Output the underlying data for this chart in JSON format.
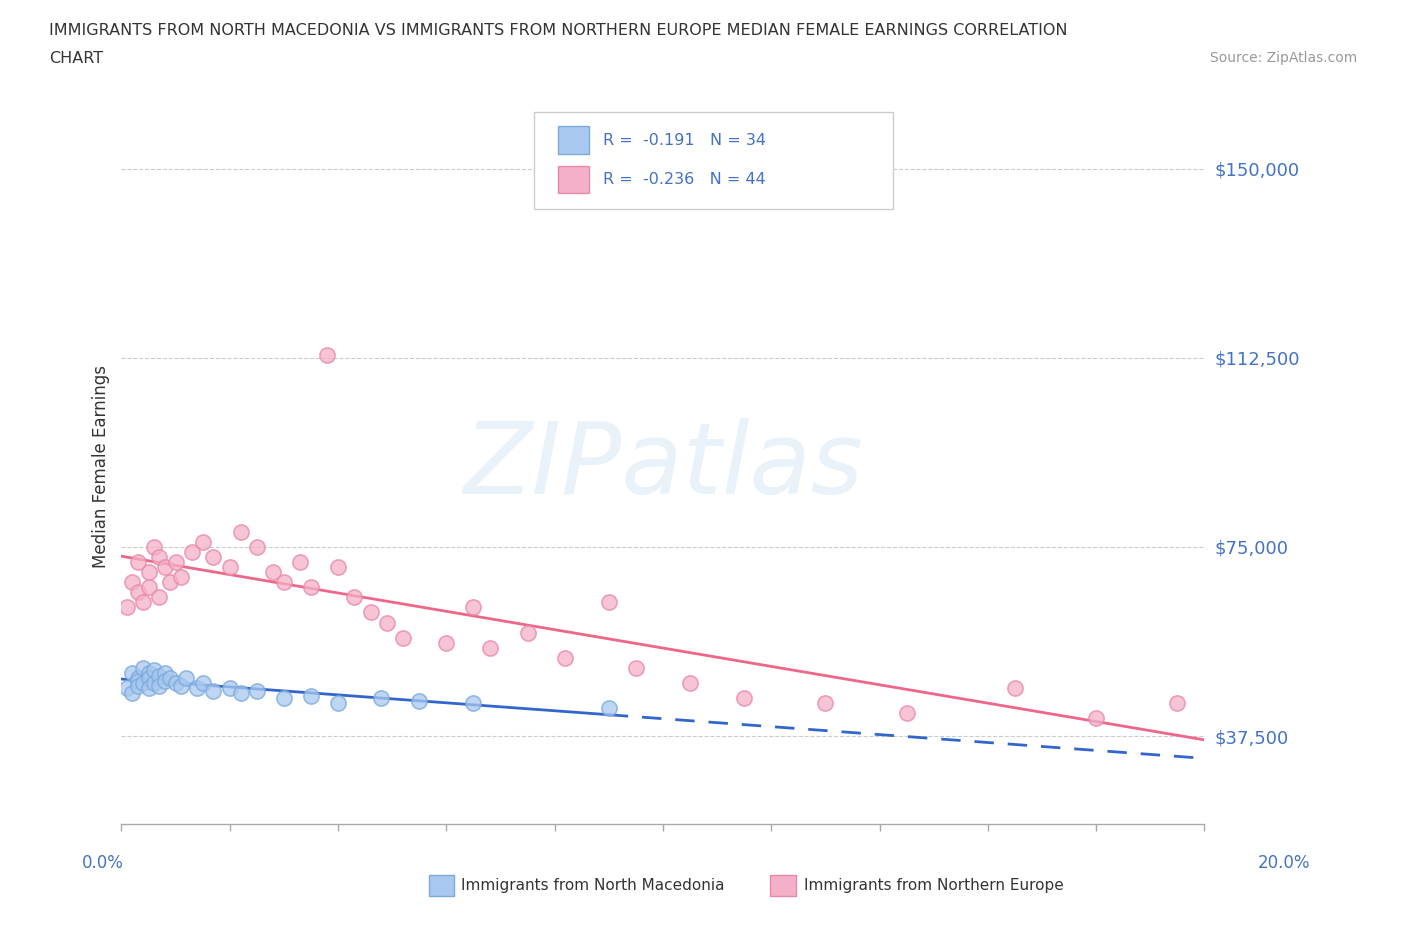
{
  "title_line1": "IMMIGRANTS FROM NORTH MACEDONIA VS IMMIGRANTS FROM NORTHERN EUROPE MEDIAN FEMALE EARNINGS CORRELATION",
  "title_line2": "CHART",
  "source": "Source: ZipAtlas.com",
  "ylabel": "Median Female Earnings",
  "ytick_labels": [
    "$37,500",
    "$75,000",
    "$112,500",
    "$150,000"
  ],
  "ytick_values": [
    37500,
    75000,
    112500,
    150000
  ],
  "xlim": [
    0.0,
    0.2
  ],
  "ylim": [
    20000,
    162000
  ],
  "watermark": "ZIPatlas",
  "legend_r1": "R =  -0.191   N = 34",
  "legend_r2": "R =  -0.236   N = 44",
  "legend_label1": "Immigrants from North Macedonia",
  "legend_label2": "Immigrants from Northern Europe",
  "color_blue_fill": "#A8C8F0",
  "color_blue_edge": "#7AAAD8",
  "color_pink_fill": "#F4B0C8",
  "color_pink_edge": "#E888A8",
  "color_blue_line": "#3366CC",
  "color_pink_line": "#EE6688",
  "color_blue_text": "#4472C4",
  "grid_color": "#CCCCCC",
  "axis_color": "#AAAAAA",
  "text_color": "#333333",
  "source_color": "#999999",
  "blue_x": [
    0.001,
    0.002,
    0.002,
    0.003,
    0.003,
    0.003,
    0.004,
    0.004,
    0.005,
    0.005,
    0.005,
    0.006,
    0.006,
    0.007,
    0.007,
    0.008,
    0.008,
    0.009,
    0.01,
    0.011,
    0.012,
    0.014,
    0.015,
    0.017,
    0.02,
    0.022,
    0.025,
    0.03,
    0.035,
    0.04,
    0.048,
    0.055,
    0.065,
    0.09
  ],
  "blue_y": [
    47000,
    50000,
    46000,
    49000,
    48500,
    47500,
    51000,
    48000,
    50000,
    49000,
    47000,
    50500,
    48000,
    49500,
    47500,
    50000,
    48500,
    49000,
    48000,
    47500,
    49000,
    47000,
    48000,
    46500,
    47000,
    46000,
    46500,
    45000,
    45500,
    44000,
    45000,
    44500,
    44000,
    43000
  ],
  "pink_x": [
    0.001,
    0.002,
    0.003,
    0.003,
    0.004,
    0.005,
    0.005,
    0.006,
    0.007,
    0.007,
    0.008,
    0.009,
    0.01,
    0.011,
    0.013,
    0.015,
    0.017,
    0.02,
    0.022,
    0.025,
    0.028,
    0.03,
    0.033,
    0.035,
    0.038,
    0.04,
    0.043,
    0.046,
    0.049,
    0.052,
    0.06,
    0.065,
    0.068,
    0.075,
    0.082,
    0.09,
    0.095,
    0.105,
    0.115,
    0.13,
    0.145,
    0.165,
    0.18,
    0.195
  ],
  "pink_y": [
    63000,
    68000,
    66000,
    72000,
    64000,
    70000,
    67000,
    75000,
    73000,
    65000,
    71000,
    68000,
    72000,
    69000,
    74000,
    76000,
    73000,
    71000,
    78000,
    75000,
    70000,
    68000,
    72000,
    67000,
    113000,
    71000,
    65000,
    62000,
    60000,
    57000,
    56000,
    63000,
    55000,
    58000,
    53000,
    64000,
    51000,
    48000,
    45000,
    44000,
    42000,
    47000,
    41000,
    44000
  ],
  "blue_line_solid_end": 0.09,
  "blue_line_dash_end": 0.2,
  "pink_line_solid_end": 0.2
}
